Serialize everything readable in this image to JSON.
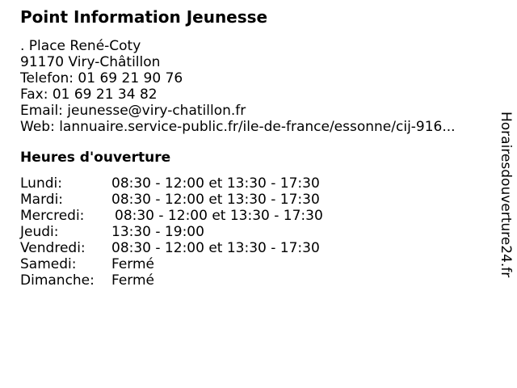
{
  "page": {
    "title": "Point Information Jeunesse",
    "site_watermark": "Horairesdouverture24.fr"
  },
  "contact": {
    "address_line_1": ". Place René-Coty",
    "address_line_2": "91170 Viry-Châtillon",
    "phone": "Telefon: 01 69 21 90 76",
    "fax": "Fax: 01 69 21 34 82",
    "email": "Email: jeunesse@viry-chatillon.fr",
    "web": "Web: lannuaire.service-public.fr/ile-de-france/essonne/cij-916..."
  },
  "hours": {
    "heading": "Heures d'ouverture",
    "rows": [
      {
        "day": "Lundi:",
        "times": "08:30 - 12:00 et 13:30 - 17:30"
      },
      {
        "day": "Mardi:",
        "times": "08:30 - 12:00 et 13:30 - 17:30"
      },
      {
        "day": "Mercredi:",
        "times": "08:30 - 12:00 et 13:30 - 17:30"
      },
      {
        "day": "Jeudi:",
        "times": "13:30 - 19:00"
      },
      {
        "day": "Vendredi:",
        "times": "08:30 - 12:00 et 13:30 - 17:30"
      },
      {
        "day": "Samedi:",
        "times": "Fermé"
      },
      {
        "day": "Dimanche:",
        "times": "Fermé"
      }
    ]
  },
  "colors": {
    "text": "#000000",
    "background": "#ffffff"
  }
}
